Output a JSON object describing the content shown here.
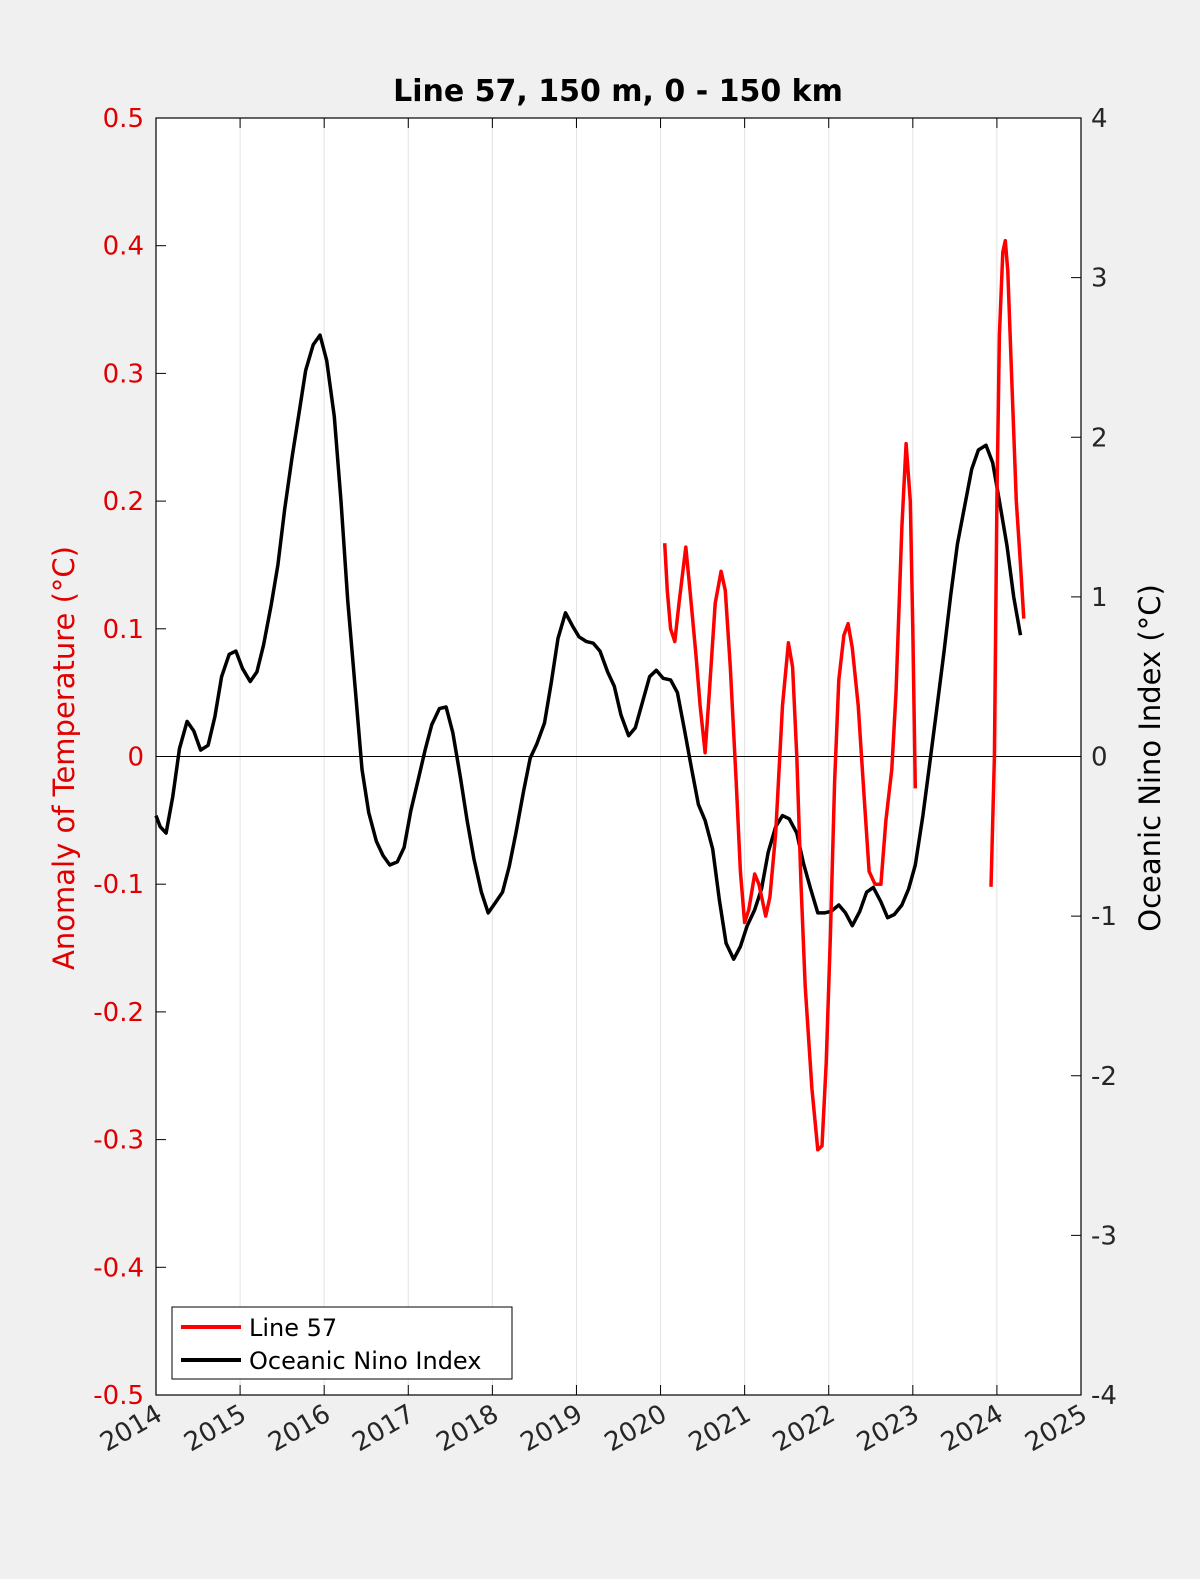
{
  "chart_data": {
    "type": "line",
    "title": "Line 57, 150 m, 0 - 150 km",
    "xlabel": "",
    "ylabel_left": "Anomaly of Temperature (°C)",
    "ylabel_right": "Oceanic Nino Index (°C)",
    "xlim": [
      2014,
      2025
    ],
    "ylim_left": [
      -0.5,
      0.5
    ],
    "ylim_right": [
      -4,
      4
    ],
    "x_ticks": [
      2014,
      2015,
      2016,
      2017,
      2018,
      2019,
      2020,
      2021,
      2022,
      2023,
      2024,
      2025
    ],
    "y_ticks_left": [
      "0.5",
      "0.4",
      "0.3",
      "0.2",
      "0.1",
      "0",
      "-0.1",
      "-0.2",
      "-0.3",
      "-0.4",
      "-0.5"
    ],
    "y_ticks_right": [
      "4",
      "3",
      "2",
      "1",
      "0",
      "-1",
      "-2",
      "-3",
      "-4"
    ],
    "grid": "vertical",
    "zero_line": true,
    "legend_position": "bottom-left",
    "colors": {
      "line57": "#ff0000",
      "oni": "#000000",
      "left_axis": "#e00000",
      "right_axis": "#000000",
      "plot_bg": "#ffffff",
      "page_bg": "#f0f0f0"
    },
    "series": [
      {
        "name": "Line 57",
        "axis": "left",
        "segments": [
          [
            [
              2020.05,
              0.167
            ],
            [
              2020.08,
              0.13
            ],
            [
              2020.12,
              0.1
            ],
            [
              2020.17,
              0.09
            ],
            [
              2020.22,
              0.12
            ],
            [
              2020.3,
              0.164
            ],
            [
              2020.35,
              0.13
            ],
            [
              2020.42,
              0.08
            ],
            [
              2020.47,
              0.04
            ],
            [
              2020.53,
              0.003
            ],
            [
              2020.58,
              0.05
            ],
            [
              2020.65,
              0.12
            ],
            [
              2020.72,
              0.145
            ],
            [
              2020.77,
              0.13
            ],
            [
              2020.83,
              0.07
            ],
            [
              2020.9,
              -0.02
            ],
            [
              2020.95,
              -0.09
            ],
            [
              2021.0,
              -0.13
            ],
            [
              2021.05,
              -0.12
            ],
            [
              2021.12,
              -0.092
            ],
            [
              2021.17,
              -0.1
            ],
            [
              2021.25,
              -0.125
            ],
            [
              2021.3,
              -0.11
            ],
            [
              2021.37,
              -0.06
            ],
            [
              2021.45,
              0.04
            ],
            [
              2021.52,
              0.089
            ],
            [
              2021.57,
              0.07
            ],
            [
              2021.62,
              0.0
            ],
            [
              2021.67,
              -0.1
            ],
            [
              2021.72,
              -0.18
            ],
            [
              2021.8,
              -0.26
            ],
            [
              2021.87,
              -0.308
            ],
            [
              2021.92,
              -0.305
            ],
            [
              2021.97,
              -0.24
            ],
            [
              2022.02,
              -0.14
            ],
            [
              2022.07,
              -0.02
            ],
            [
              2022.12,
              0.06
            ],
            [
              2022.18,
              0.095
            ],
            [
              2022.23,
              0.104
            ],
            [
              2022.28,
              0.085
            ],
            [
              2022.35,
              0.04
            ],
            [
              2022.42,
              -0.03
            ],
            [
              2022.48,
              -0.09
            ],
            [
              2022.55,
              -0.1
            ],
            [
              2022.62,
              -0.1
            ],
            [
              2022.68,
              -0.05
            ],
            [
              2022.75,
              -0.01
            ],
            [
              2022.8,
              0.05
            ],
            [
              2022.87,
              0.18
            ],
            [
              2022.92,
              0.245
            ],
            [
              2022.97,
              0.2
            ],
            [
              2023.0,
              0.1
            ],
            [
              2023.03,
              -0.025
            ]
          ],
          [
            [
              2023.93,
              -0.102
            ],
            [
              2023.97,
              0.0
            ],
            [
              2024.0,
              0.2
            ],
            [
              2024.03,
              0.33
            ],
            [
              2024.07,
              0.395
            ],
            [
              2024.1,
              0.404
            ],
            [
              2024.13,
              0.38
            ],
            [
              2024.18,
              0.29
            ],
            [
              2024.23,
              0.2
            ],
            [
              2024.28,
              0.15
            ],
            [
              2024.32,
              0.108
            ]
          ]
        ]
      },
      {
        "name": "Oceanic Nino Index",
        "axis": "right",
        "segments": [
          [
            [
              2014.0,
              -0.37
            ],
            [
              2014.05,
              -0.44
            ],
            [
              2014.12,
              -0.48
            ],
            [
              2014.2,
              -0.25
            ],
            [
              2014.28,
              0.05
            ],
            [
              2014.37,
              0.22
            ],
            [
              2014.45,
              0.16
            ],
            [
              2014.53,
              0.04
            ],
            [
              2014.62,
              0.07
            ],
            [
              2014.7,
              0.25
            ],
            [
              2014.78,
              0.5
            ],
            [
              2014.87,
              0.64
            ],
            [
              2014.95,
              0.66
            ],
            [
              2015.03,
              0.55
            ],
            [
              2015.12,
              0.47
            ],
            [
              2015.2,
              0.53
            ],
            [
              2015.28,
              0.7
            ],
            [
              2015.37,
              0.95
            ],
            [
              2015.45,
              1.2
            ],
            [
              2015.53,
              1.55
            ],
            [
              2015.62,
              1.88
            ],
            [
              2015.7,
              2.15
            ],
            [
              2015.78,
              2.42
            ],
            [
              2015.87,
              2.58
            ],
            [
              2015.95,
              2.64
            ],
            [
              2016.03,
              2.48
            ],
            [
              2016.12,
              2.13
            ],
            [
              2016.2,
              1.6
            ],
            [
              2016.28,
              0.98
            ],
            [
              2016.37,
              0.42
            ],
            [
              2016.45,
              -0.08
            ],
            [
              2016.53,
              -0.35
            ],
            [
              2016.62,
              -0.53
            ],
            [
              2016.7,
              -0.62
            ],
            [
              2016.78,
              -0.68
            ],
            [
              2016.87,
              -0.66
            ],
            [
              2016.95,
              -0.57
            ],
            [
              2017.03,
              -0.34
            ],
            [
              2017.12,
              -0.14
            ],
            [
              2017.2,
              0.04
            ],
            [
              2017.28,
              0.2
            ],
            [
              2017.37,
              0.3
            ],
            [
              2017.45,
              0.31
            ],
            [
              2017.53,
              0.15
            ],
            [
              2017.62,
              -0.13
            ],
            [
              2017.7,
              -0.4
            ],
            [
              2017.78,
              -0.64
            ],
            [
              2017.87,
              -0.85
            ],
            [
              2017.95,
              -0.98
            ],
            [
              2018.03,
              -0.92
            ],
            [
              2018.12,
              -0.85
            ],
            [
              2018.2,
              -0.69
            ],
            [
              2018.28,
              -0.48
            ],
            [
              2018.37,
              -0.22
            ],
            [
              2018.45,
              -0.01
            ],
            [
              2018.53,
              0.08
            ],
            [
              2018.62,
              0.21
            ],
            [
              2018.7,
              0.46
            ],
            [
              2018.78,
              0.74
            ],
            [
              2018.87,
              0.9
            ],
            [
              2018.95,
              0.82
            ],
            [
              2019.03,
              0.75
            ],
            [
              2019.12,
              0.72
            ],
            [
              2019.2,
              0.71
            ],
            [
              2019.28,
              0.66
            ],
            [
              2019.37,
              0.53
            ],
            [
              2019.45,
              0.44
            ],
            [
              2019.53,
              0.26
            ],
            [
              2019.62,
              0.13
            ],
            [
              2019.7,
              0.18
            ],
            [
              2019.78,
              0.33
            ],
            [
              2019.87,
              0.5
            ],
            [
              2019.95,
              0.54
            ],
            [
              2020.03,
              0.49
            ],
            [
              2020.12,
              0.48
            ],
            [
              2020.2,
              0.4
            ],
            [
              2020.28,
              0.18
            ],
            [
              2020.37,
              -0.08
            ],
            [
              2020.45,
              -0.3
            ],
            [
              2020.53,
              -0.4
            ],
            [
              2020.62,
              -0.58
            ],
            [
              2020.7,
              -0.9
            ],
            [
              2020.78,
              -1.17
            ],
            [
              2020.87,
              -1.27
            ],
            [
              2020.95,
              -1.19
            ],
            [
              2021.03,
              -1.06
            ],
            [
              2021.12,
              -0.96
            ],
            [
              2021.2,
              -0.83
            ],
            [
              2021.28,
              -0.6
            ],
            [
              2021.37,
              -0.44
            ],
            [
              2021.45,
              -0.37
            ],
            [
              2021.53,
              -0.39
            ],
            [
              2021.62,
              -0.48
            ],
            [
              2021.7,
              -0.67
            ],
            [
              2021.78,
              -0.82
            ],
            [
              2021.87,
              -0.98
            ],
            [
              2021.95,
              -0.98
            ],
            [
              2022.03,
              -0.97
            ],
            [
              2022.12,
              -0.93
            ],
            [
              2022.2,
              -0.98
            ],
            [
              2022.28,
              -1.06
            ],
            [
              2022.37,
              -0.97
            ],
            [
              2022.45,
              -0.85
            ],
            [
              2022.53,
              -0.82
            ],
            [
              2022.62,
              -0.91
            ],
            [
              2022.7,
              -1.01
            ],
            [
              2022.78,
              -0.99
            ],
            [
              2022.87,
              -0.93
            ],
            [
              2022.95,
              -0.83
            ],
            [
              2023.03,
              -0.68
            ],
            [
              2023.12,
              -0.37
            ],
            [
              2023.2,
              -0.05
            ],
            [
              2023.28,
              0.28
            ],
            [
              2023.37,
              0.65
            ],
            [
              2023.45,
              1.01
            ],
            [
              2023.53,
              1.33
            ],
            [
              2023.62,
              1.58
            ],
            [
              2023.7,
              1.8
            ],
            [
              2023.78,
              1.92
            ],
            [
              2023.87,
              1.95
            ],
            [
              2023.95,
              1.84
            ],
            [
              2024.03,
              1.6
            ],
            [
              2024.12,
              1.32
            ],
            [
              2024.2,
              1.0
            ],
            [
              2024.28,
              0.76
            ]
          ]
        ]
      }
    ]
  }
}
